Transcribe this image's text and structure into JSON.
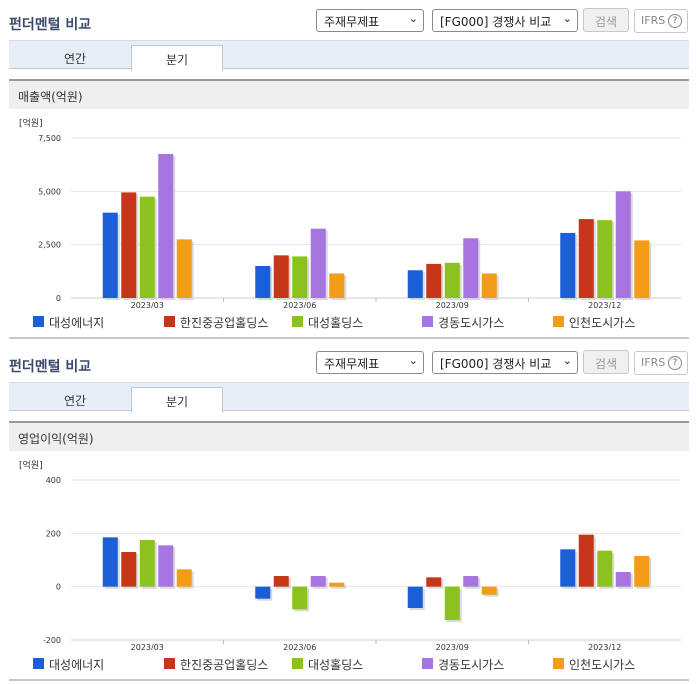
{
  "panels": [
    {
      "title": "펀더멘털 비교",
      "select1": "주재무제표",
      "select2": "[FG000] 경쟁사 비교",
      "search_label": "검색",
      "ifrs_label": "IFRS",
      "help_label": "?",
      "tabs": [
        "연간",
        "분기"
      ],
      "active_tab": "분기",
      "section_title": "매출액(억원)"
    },
    {
      "title": "펀더멘털 비교",
      "select1": "주재무제표",
      "select2": "[FG000] 경쟁사 비교",
      "search_label": "검색",
      "ifrs_label": "IFRS",
      "help_label": "?",
      "tabs": [
        "연간",
        "분기"
      ],
      "active_tab": "분기",
      "section_title": "영업이익(억원)"
    }
  ],
  "legend": [
    {
      "name": "대성에너지",
      "color": "#1a5fd6"
    },
    {
      "name": "한진중공업홀딩스",
      "color": "#c8361a"
    },
    {
      "name": "대성홀딩스",
      "color": "#8cc21f"
    },
    {
      "name": "경동도시가스",
      "color": "#a775e0"
    },
    {
      "name": "인천도시가스",
      "color": "#f39c17"
    }
  ],
  "chart_data": [
    {
      "type": "bar",
      "unit_label": "[억원]",
      "categories": [
        "2023/03",
        "2023/06",
        "2023/09",
        "2023/12"
      ],
      "ylim": [
        0,
        7500
      ],
      "yticks": [
        0,
        2500,
        5000,
        7500
      ],
      "ytick_labels": [
        "0",
        "2,500",
        "5,000",
        "7,500"
      ],
      "series": [
        {
          "name": "대성에너지",
          "values": [
            4000,
            1500,
            1300,
            3050
          ]
        },
        {
          "name": "한진중공업홀딩스",
          "values": [
            4950,
            2000,
            1600,
            3700
          ]
        },
        {
          "name": "대성홀딩스",
          "values": [
            4750,
            1950,
            1650,
            3650
          ]
        },
        {
          "name": "경동도시가스",
          "values": [
            6750,
            3250,
            2800,
            5000
          ]
        },
        {
          "name": "인천도시가스",
          "values": [
            2750,
            1150,
            1150,
            2700
          ]
        }
      ]
    },
    {
      "type": "bar",
      "unit_label": "[억원]",
      "categories": [
        "2023/03",
        "2023/06",
        "2023/09",
        "2023/12"
      ],
      "ylim": [
        -200,
        400
      ],
      "yticks": [
        -200,
        0,
        200,
        400
      ],
      "ytick_labels": [
        "-200",
        "0",
        "200",
        "400"
      ],
      "series": [
        {
          "name": "대성에너지",
          "values": [
            185,
            -45,
            -80,
            140
          ]
        },
        {
          "name": "한진중공업홀딩스",
          "values": [
            130,
            40,
            35,
            195
          ]
        },
        {
          "name": "대성홀딩스",
          "values": [
            175,
            -85,
            -125,
            135
          ]
        },
        {
          "name": "경동도시가스",
          "values": [
            155,
            40,
            40,
            55
          ]
        },
        {
          "name": "인천도시가스",
          "values": [
            65,
            15,
            -30,
            115
          ]
        }
      ]
    }
  ]
}
